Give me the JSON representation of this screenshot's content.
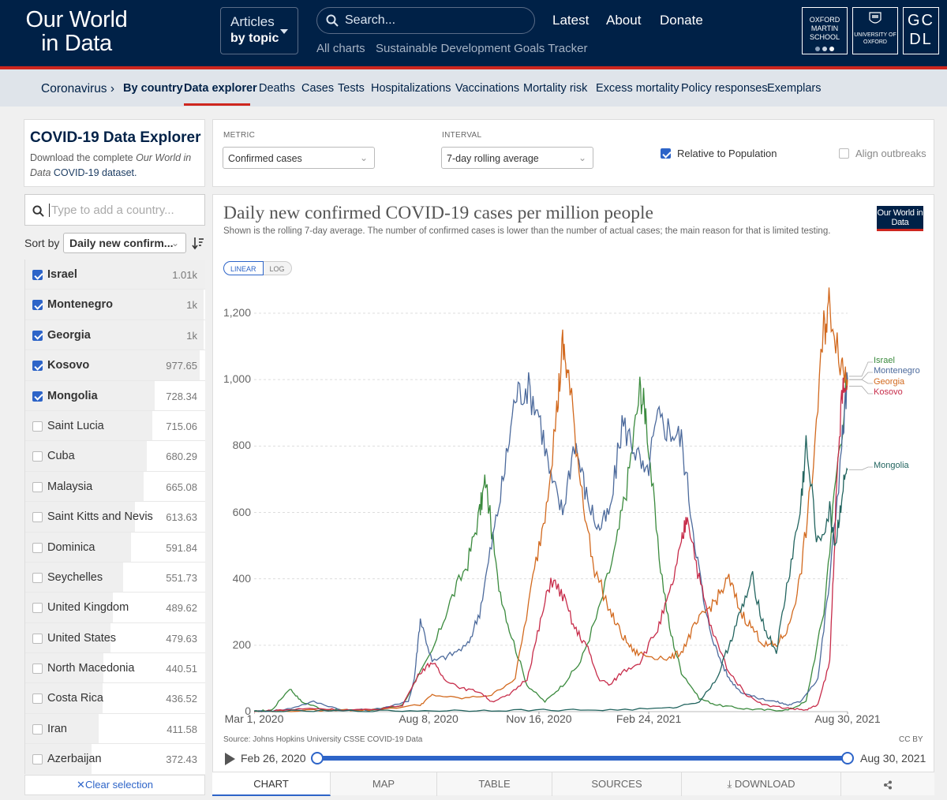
{
  "header": {
    "logo": "Our World in Data",
    "articles_line1": "Articles",
    "articles_line2": "by topic",
    "search_placeholder": "Search...",
    "nav": [
      "Latest",
      "About",
      "Donate"
    ],
    "sub_links": [
      "All charts",
      "Sustainable Development Goals Tracker"
    ],
    "partner_logos": [
      "OXFORD MARTIN SCHOOL",
      "UNIVERSITY OF OXFORD",
      "GCDL"
    ]
  },
  "subnav": {
    "items": [
      "Coronavirus ›",
      "By country",
      "Data explorer",
      "Deaths",
      "Cases",
      "Tests",
      "Hospitalizations",
      "Vaccinations",
      "Mortality risk",
      "Excess mortality",
      "Policy responses",
      "Exemplars"
    ],
    "active": "Data explorer"
  },
  "explorer": {
    "title": "COVID-19 Data Explorer",
    "desc_prefix": "Download the complete ",
    "desc_italic": "Our World in Data",
    "desc_link": "COVID-19 dataset.",
    "search_placeholder": "Type to add a country...",
    "sort_label": "Sort by",
    "sort_value": "Daily new confirm...",
    "clear_selection": "Clear selection"
  },
  "countries": [
    {
      "name": "Israel",
      "value": "1.01k",
      "selected": true,
      "frac": 1.0
    },
    {
      "name": "Montenegro",
      "value": "1k",
      "selected": true,
      "frac": 0.99
    },
    {
      "name": "Georgia",
      "value": "1k",
      "selected": true,
      "frac": 0.99
    },
    {
      "name": "Kosovo",
      "value": "977.65",
      "selected": true,
      "frac": 0.968
    },
    {
      "name": "Mongolia",
      "value": "728.34",
      "selected": true,
      "frac": 0.721
    },
    {
      "name": "Saint Lucia",
      "value": "715.06",
      "selected": false,
      "frac": 0.708
    },
    {
      "name": "Cuba",
      "value": "680.29",
      "selected": false,
      "frac": 0.674
    },
    {
      "name": "Malaysia",
      "value": "665.08",
      "selected": false,
      "frac": 0.659
    },
    {
      "name": "Saint Kitts and Nevis",
      "value": "613.63",
      "selected": false,
      "frac": 0.608
    },
    {
      "name": "Dominica",
      "value": "591.84",
      "selected": false,
      "frac": 0.586
    },
    {
      "name": "Seychelles",
      "value": "551.73",
      "selected": false,
      "frac": 0.546
    },
    {
      "name": "United Kingdom",
      "value": "489.62",
      "selected": false,
      "frac": 0.485
    },
    {
      "name": "United States",
      "value": "479.63",
      "selected": false,
      "frac": 0.475
    },
    {
      "name": "North Macedonia",
      "value": "440.51",
      "selected": false,
      "frac": 0.436
    },
    {
      "name": "Costa Rica",
      "value": "436.52",
      "selected": false,
      "frac": 0.432
    },
    {
      "name": "Iran",
      "value": "411.58",
      "selected": false,
      "frac": 0.408
    },
    {
      "name": "Azerbaijan",
      "value": "372.43",
      "selected": false,
      "frac": 0.369
    }
  ],
  "controls": {
    "metric_label": "METRIC",
    "metric_value": "Confirmed cases",
    "interval_label": "INTERVAL",
    "interval_value": "7-day rolling average",
    "relative_label": "Relative to Population",
    "relative_checked": true,
    "align_label": "Align outbreaks",
    "align_checked": false
  },
  "chart": {
    "scale_linear": "LINEAR",
    "scale_log": "LOG",
    "source": "Source: Johns Hopkins University CSSE COVID-19 Data",
    "license": "CC BY",
    "badge": "Our World in Data",
    "range_start": "Feb 26, 2020",
    "range_end": "Aug 30, 2021",
    "tabs": [
      "CHART",
      "MAP",
      "TABLE",
      "SOURCES",
      "DOWNLOAD",
      ""
    ],
    "active_tab": "CHART"
  },
  "chart_data": {
    "type": "line",
    "title": "Daily new confirmed COVID-19 cases per million people",
    "subtitle": "Shown is the rolling 7-day average. The number of confirmed cases is lower than the number of actual cases; the main reason for that is limited testing.",
    "xlabel": "",
    "ylabel": "",
    "ylim": [
      0,
      1200
    ],
    "y_ticks": [
      "0",
      "200",
      "400",
      "600",
      "800",
      "1,000",
      "1,200"
    ],
    "x_ticks": [
      "Mar 1, 2020",
      "Aug 8, 2020",
      "Nov 16, 2020",
      "Feb 24, 2021",
      "Aug 30, 2021"
    ],
    "x_tick_pos": [
      0.0,
      0.294,
      0.48,
      0.665,
      1.0
    ],
    "legend_position": "right",
    "series": [
      {
        "name": "Israel",
        "color": "#3a8a3d",
        "points": [
          [
            0,
            0
          ],
          [
            0.03,
            5
          ],
          [
            0.06,
            70
          ],
          [
            0.08,
            30
          ],
          [
            0.12,
            5
          ],
          [
            0.2,
            5
          ],
          [
            0.25,
            20
          ],
          [
            0.3,
            180
          ],
          [
            0.33,
            330
          ],
          [
            0.36,
            450
          ],
          [
            0.38,
            600
          ],
          [
            0.39,
            700
          ],
          [
            0.41,
            400
          ],
          [
            0.43,
            250
          ],
          [
            0.46,
            80
          ],
          [
            0.49,
            30
          ],
          [
            0.52,
            80
          ],
          [
            0.55,
            150
          ],
          [
            0.58,
            300
          ],
          [
            0.61,
            500
          ],
          [
            0.63,
            700
          ],
          [
            0.65,
            970
          ],
          [
            0.66,
            900
          ],
          [
            0.68,
            500
          ],
          [
            0.7,
            250
          ],
          [
            0.72,
            120
          ],
          [
            0.75,
            40
          ],
          [
            0.78,
            20
          ],
          [
            0.82,
            10
          ],
          [
            0.86,
            5
          ],
          [
            0.9,
            5
          ],
          [
            0.93,
            30
          ],
          [
            0.96,
            300
          ],
          [
            0.98,
            700
          ],
          [
            1.0,
            1010
          ]
        ]
      },
      {
        "name": "Montenegro",
        "color": "#4c6a9c",
        "points": [
          [
            0,
            0
          ],
          [
            0.05,
            5
          ],
          [
            0.1,
            30
          ],
          [
            0.15,
            5
          ],
          [
            0.2,
            5
          ],
          [
            0.26,
            30
          ],
          [
            0.27,
            100
          ],
          [
            0.28,
            280
          ],
          [
            0.3,
            150
          ],
          [
            0.33,
            170
          ],
          [
            0.36,
            200
          ],
          [
            0.38,
            300
          ],
          [
            0.4,
            500
          ],
          [
            0.42,
            700
          ],
          [
            0.44,
            950
          ],
          [
            0.46,
            980
          ],
          [
            0.48,
            900
          ],
          [
            0.5,
            700
          ],
          [
            0.52,
            600
          ],
          [
            0.54,
            820
          ],
          [
            0.56,
            650
          ],
          [
            0.58,
            550
          ],
          [
            0.6,
            600
          ],
          [
            0.62,
            870
          ],
          [
            0.64,
            800
          ],
          [
            0.66,
            700
          ],
          [
            0.68,
            880
          ],
          [
            0.7,
            850
          ],
          [
            0.72,
            820
          ],
          [
            0.74,
            550
          ],
          [
            0.76,
            300
          ],
          [
            0.78,
            180
          ],
          [
            0.8,
            100
          ],
          [
            0.82,
            60
          ],
          [
            0.85,
            40
          ],
          [
            0.88,
            30
          ],
          [
            0.9,
            20
          ],
          [
            0.92,
            30
          ],
          [
            0.95,
            100
          ],
          [
            0.97,
            400
          ],
          [
            0.99,
            800
          ],
          [
            1.0,
            1000
          ]
        ]
      },
      {
        "name": "Georgia",
        "color": "#d2691e",
        "points": [
          [
            0,
            0
          ],
          [
            0.05,
            2
          ],
          [
            0.15,
            5
          ],
          [
            0.2,
            5
          ],
          [
            0.28,
            20
          ],
          [
            0.3,
            50
          ],
          [
            0.35,
            40
          ],
          [
            0.4,
            50
          ],
          [
            0.44,
            100
          ],
          [
            0.47,
            400
          ],
          [
            0.49,
            600
          ],
          [
            0.51,
            900
          ],
          [
            0.52,
            1100
          ],
          [
            0.53,
            1000
          ],
          [
            0.55,
            700
          ],
          [
            0.57,
            450
          ],
          [
            0.6,
            300
          ],
          [
            0.62,
            230
          ],
          [
            0.64,
            180
          ],
          [
            0.66,
            170
          ],
          [
            0.7,
            160
          ],
          [
            0.72,
            180
          ],
          [
            0.74,
            250
          ],
          [
            0.76,
            300
          ],
          [
            0.78,
            340
          ],
          [
            0.8,
            400
          ],
          [
            0.82,
            300
          ],
          [
            0.84,
            250
          ],
          [
            0.86,
            200
          ],
          [
            0.88,
            200
          ],
          [
            0.9,
            250
          ],
          [
            0.92,
            400
          ],
          [
            0.94,
            700
          ],
          [
            0.96,
            1150
          ],
          [
            0.97,
            1230
          ],
          [
            0.99,
            1050
          ],
          [
            1.0,
            1000
          ]
        ]
      },
      {
        "name": "Kosovo",
        "color": "#c72c4a",
        "points": [
          [
            0,
            0
          ],
          [
            0.05,
            5
          ],
          [
            0.1,
            10
          ],
          [
            0.15,
            5
          ],
          [
            0.2,
            5
          ],
          [
            0.25,
            20
          ],
          [
            0.28,
            120
          ],
          [
            0.3,
            150
          ],
          [
            0.32,
            100
          ],
          [
            0.35,
            70
          ],
          [
            0.38,
            60
          ],
          [
            0.4,
            30
          ],
          [
            0.43,
            50
          ],
          [
            0.46,
            100
          ],
          [
            0.48,
            250
          ],
          [
            0.5,
            400
          ],
          [
            0.52,
            350
          ],
          [
            0.54,
            250
          ],
          [
            0.56,
            200
          ],
          [
            0.58,
            100
          ],
          [
            0.6,
            80
          ],
          [
            0.62,
            120
          ],
          [
            0.65,
            150
          ],
          [
            0.68,
            250
          ],
          [
            0.7,
            350
          ],
          [
            0.72,
            500
          ],
          [
            0.73,
            600
          ],
          [
            0.75,
            400
          ],
          [
            0.77,
            250
          ],
          [
            0.8,
            120
          ],
          [
            0.83,
            50
          ],
          [
            0.86,
            20
          ],
          [
            0.9,
            10
          ],
          [
            0.93,
            5
          ],
          [
            0.95,
            20
          ],
          [
            0.97,
            150
          ],
          [
            0.98,
            600
          ],
          [
            0.99,
            950
          ],
          [
            1.0,
            980
          ]
        ]
      },
      {
        "name": "Mongolia",
        "color": "#22645f",
        "points": [
          [
            0,
            0
          ],
          [
            0.1,
            2
          ],
          [
            0.2,
            2
          ],
          [
            0.3,
            3
          ],
          [
            0.4,
            4
          ],
          [
            0.5,
            5
          ],
          [
            0.6,
            5
          ],
          [
            0.7,
            10
          ],
          [
            0.75,
            30
          ],
          [
            0.78,
            100
          ],
          [
            0.8,
            200
          ],
          [
            0.82,
            300
          ],
          [
            0.84,
            400
          ],
          [
            0.86,
            250
          ],
          [
            0.88,
            180
          ],
          [
            0.9,
            400
          ],
          [
            0.92,
            600
          ],
          [
            0.93,
            800
          ],
          [
            0.95,
            500
          ],
          [
            0.97,
            600
          ],
          [
            0.98,
            500
          ],
          [
            0.99,
            650
          ],
          [
            1.0,
            728
          ]
        ]
      }
    ]
  }
}
